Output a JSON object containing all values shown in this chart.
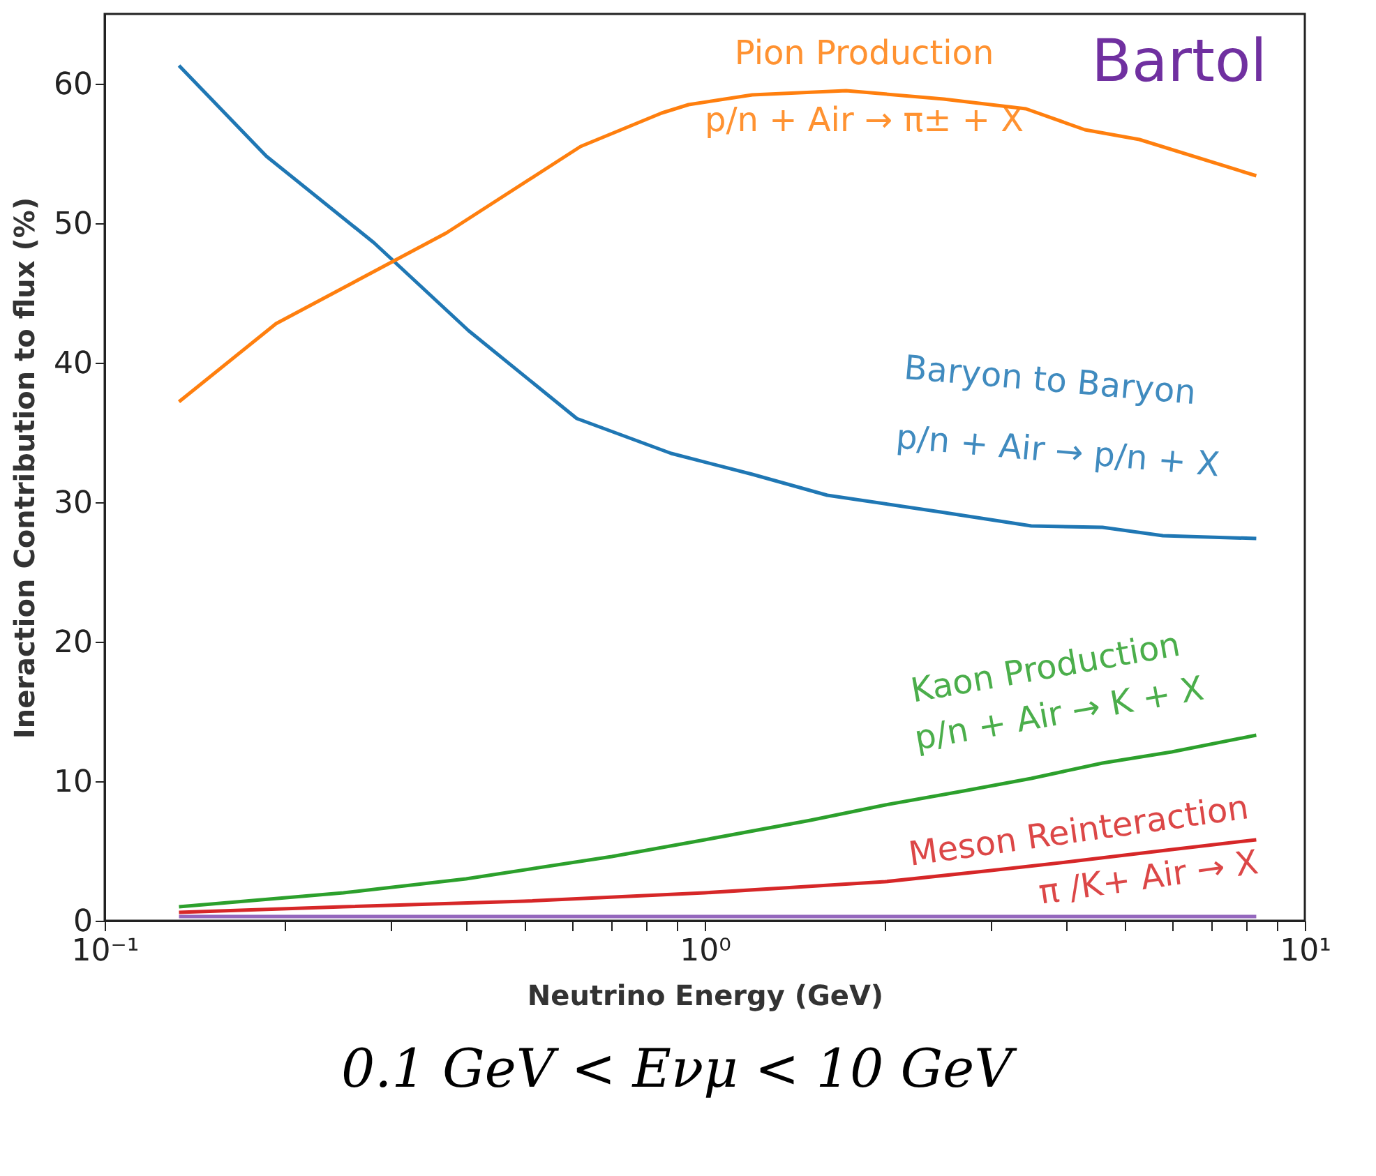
{
  "chart_data": {
    "type": "line",
    "xlabel": "Neutrino Energy (GeV)",
    "ylabel": "Ineraction Contribution to flux (%)",
    "log": "x",
    "xlim": [
      0.1,
      10
    ],
    "ylim": [
      0,
      65
    ],
    "xticks": [
      {
        "value": 0.1,
        "label": "10⁻¹"
      },
      {
        "value": 0.2,
        "label": null
      },
      {
        "value": 0.3,
        "label": null
      },
      {
        "value": 0.4,
        "label": null
      },
      {
        "value": 0.5,
        "label": null
      },
      {
        "value": 0.6,
        "label": null
      },
      {
        "value": 0.7,
        "label": null
      },
      {
        "value": 0.8,
        "label": null
      },
      {
        "value": 0.9,
        "label": null
      },
      {
        "value": 1,
        "label": "10⁰"
      },
      {
        "value": 2,
        "label": null
      },
      {
        "value": 3,
        "label": null
      },
      {
        "value": 4,
        "label": null
      },
      {
        "value": 5,
        "label": null
      },
      {
        "value": 6,
        "label": null
      },
      {
        "value": 7,
        "label": null
      },
      {
        "value": 8,
        "label": null
      },
      {
        "value": 9,
        "label": null
      },
      {
        "value": 10,
        "label": "10¹"
      }
    ],
    "yticks": [
      0,
      10,
      20,
      30,
      40,
      50,
      60
    ],
    "grid": false,
    "marker": "none",
    "line_style": "solid",
    "series": [
      {
        "name": "Baryon to Baryon\np/n + Air → p/n + X",
        "color": "#1f77b4",
        "x": [
          0.133,
          0.186,
          0.281,
          0.404,
          0.612,
          0.879,
          1.2,
          1.6,
          2.47,
          3.5,
          4.6,
          5.8,
          8.3
        ],
        "values": [
          61.3,
          54.8,
          48.6,
          42.3,
          36.0,
          33.5,
          32.0,
          30.5,
          29.3,
          28.3,
          28.2,
          27.6,
          27.4
        ]
      },
      {
        "name": "Pion Production\np/n + Air → π± + X",
        "color": "#ff7f0e",
        "x": [
          0.133,
          0.193,
          0.371,
          0.621,
          0.848,
          0.94,
          1.2,
          1.72,
          2.5,
          3.43,
          4.3,
          5.3,
          8.3
        ],
        "values": [
          37.2,
          42.8,
          49.3,
          55.5,
          57.9,
          58.5,
          59.2,
          59.5,
          58.9,
          58.2,
          56.7,
          56.0,
          53.4
        ]
      },
      {
        "name": "Kaon Production\np/n + Air → K + X",
        "color": "#2ca02c",
        "x": [
          0.133,
          0.25,
          0.4,
          0.7,
          1.0,
          1.5,
          2.0,
          2.7,
          3.5,
          4.6,
          6.0,
          8.3
        ],
        "values": [
          1.0,
          2.0,
          3.0,
          4.6,
          5.8,
          7.2,
          8.3,
          9.3,
          10.2,
          11.3,
          12.1,
          13.3
        ]
      },
      {
        "name": "Meson Reinteraction\nπ /K+ Air → X",
        "color": "#d62728",
        "x": [
          0.133,
          0.25,
          0.5,
          1.0,
          2.0,
          3.0,
          4.0,
          6.0,
          8.3
        ],
        "values": [
          0.6,
          1.0,
          1.4,
          2.0,
          2.8,
          3.6,
          4.2,
          5.1,
          5.8
        ]
      },
      {
        "color": "#9467bd",
        "x": [
          0.133,
          1.0,
          8.3
        ],
        "values": [
          0.3,
          0.3,
          0.3
        ]
      }
    ],
    "annotations": [
      "Bartol",
      "0.1 GeV < Eνμ < 10 GeV"
    ]
  }
}
